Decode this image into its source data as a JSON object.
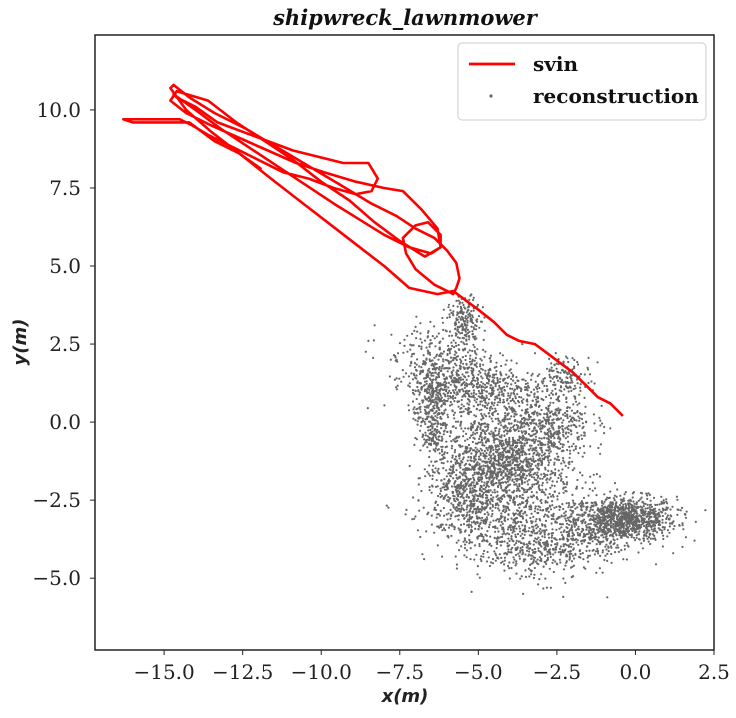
{
  "chart_data": {
    "type": "scatter",
    "title": "shipwreck_lawnmower",
    "xlabel": "x(m)",
    "ylabel": "y(m)",
    "xlim": [
      -17.2,
      2.5
    ],
    "ylim": [
      -7.3,
      12.4
    ],
    "xticks": [
      -15.0,
      -12.5,
      -10.0,
      -7.5,
      -5.0,
      -2.5,
      0.0,
      2.5
    ],
    "yticks": [
      -5.0,
      -2.5,
      0.0,
      2.5,
      5.0,
      7.5,
      10.0
    ],
    "xtick_labels": [
      "−15.0",
      "−12.5",
      "−10.0",
      "−7.5",
      "−5.0",
      "−2.5",
      "0.0",
      "2.5"
    ],
    "ytick_labels": [
      "−5.0",
      "−2.5",
      "0.0",
      "2.5",
      "5.0",
      "7.5",
      "10.0"
    ],
    "grid": false,
    "legend": {
      "position": "top-right",
      "entries": [
        {
          "label": "svin",
          "style": "line",
          "color": "#ff0000"
        },
        {
          "label": "reconstruction",
          "style": "point",
          "color": "#666666"
        }
      ]
    },
    "series": [
      {
        "name": "svin",
        "style": "line",
        "color": "#ff0000",
        "x": [
          -0.4,
          -0.8,
          -1.2,
          -1.6,
          -2.0,
          -2.4,
          -2.8,
          -3.2,
          -3.7,
          -4.1,
          -4.5,
          -5.0,
          -5.4,
          -5.8,
          -6.3,
          -7.2,
          -8.0,
          -8.9,
          -9.8,
          -10.7,
          -11.6,
          -12.6,
          -13.5,
          -14.3,
          -14.8,
          -14.7,
          -14.2,
          -13.4,
          -12.4,
          -11.4,
          -10.4,
          -9.4,
          -8.4,
          -7.6,
          -7.0,
          -6.4,
          -6.0,
          -5.7,
          -5.6,
          -5.7,
          -5.8,
          -6.4,
          -7.0,
          -7.3,
          -7.4,
          -7.0,
          -6.6,
          -6.2,
          -6.2,
          -6.7,
          -7.5,
          -8.3,
          -9.1,
          -10.0,
          -10.9,
          -11.8,
          -12.7,
          -13.6,
          -14.6,
          -14.8,
          -14.3,
          -13.5,
          -12.6,
          -11.7,
          -10.8,
          -9.9,
          -8.9,
          -8.0,
          -7.4,
          -6.8,
          -6.3,
          -6.2,
          -6.5,
          -7.2,
          -8.0,
          -8.8,
          -9.6,
          -10.5,
          -11.4,
          -12.3,
          -13.2,
          -14.0,
          -14.7,
          -14.6,
          -14.0,
          -13.3,
          -12.5,
          -11.7,
          -10.9,
          -10.1,
          -9.3,
          -8.5,
          -8.2,
          -8.4,
          -8.9,
          -9.6,
          -10.4,
          -11.2,
          -12.0,
          -12.8,
          -13.6,
          -14.1,
          -14.5,
          -15.4,
          -16.3,
          -16.0,
          -15.0,
          -14.2,
          -13.4,
          -12.6,
          -11.9
        ],
        "y": [
          0.2,
          0.6,
          0.8,
          1.2,
          1.6,
          1.9,
          2.2,
          2.5,
          2.6,
          2.8,
          3.2,
          3.6,
          3.9,
          4.2,
          4.1,
          4.3,
          5.0,
          5.7,
          6.4,
          7.1,
          7.8,
          8.6,
          9.3,
          10.0,
          10.7,
          10.8,
          10.4,
          9.9,
          9.4,
          8.8,
          8.2,
          7.6,
          7.0,
          6.6,
          6.2,
          5.9,
          5.5,
          5.1,
          4.6,
          4.3,
          4.1,
          4.4,
          4.9,
          5.4,
          5.9,
          6.3,
          6.4,
          6.0,
          5.6,
          5.3,
          5.8,
          6.4,
          7.1,
          7.7,
          8.4,
          9.0,
          9.6,
          10.3,
          10.6,
          10.3,
          9.9,
          9.5,
          9.1,
          8.7,
          8.3,
          8.0,
          7.7,
          7.5,
          7.4,
          6.8,
          6.2,
          5.6,
          5.4,
          5.6,
          6.0,
          6.5,
          7.0,
          7.6,
          8.2,
          8.8,
          9.4,
          10.0,
          10.5,
          10.4,
          10.1,
          9.6,
          9.3,
          9.0,
          8.7,
          8.5,
          8.3,
          8.3,
          7.8,
          7.4,
          7.3,
          7.5,
          7.8,
          8.0,
          8.4,
          8.8,
          9.2,
          9.5,
          9.7,
          9.7,
          9.7,
          9.6,
          9.6,
          9.6,
          9.0,
          8.6,
          8.1
        ]
      },
      {
        "name": "reconstruction",
        "style": "points",
        "color": "#666666",
        "clusters": [
          {
            "x": -0.3,
            "y": -3.1,
            "sx": 0.8,
            "sy": 0.35,
            "n": 900
          },
          {
            "x": -3.8,
            "y": -1.5,
            "sx": 0.9,
            "sy": 0.6,
            "n": 650
          },
          {
            "x": -5.2,
            "y": 1.2,
            "sx": 1.0,
            "sy": 0.5,
            "n": 500
          },
          {
            "x": -6.5,
            "y": 0.2,
            "sx": 0.25,
            "sy": 0.8,
            "n": 300
          },
          {
            "x": -2.8,
            "y": 0.0,
            "sx": 0.7,
            "sy": 0.6,
            "n": 450
          },
          {
            "x": -5.4,
            "y": -2.3,
            "sx": 0.6,
            "sy": 0.7,
            "n": 400
          },
          {
            "x": -3.2,
            "y": -4.1,
            "sx": 0.9,
            "sy": 0.5,
            "n": 350
          },
          {
            "x": -5.4,
            "y": 3.2,
            "sx": 0.25,
            "sy": 0.4,
            "n": 180
          },
          {
            "x": -2.2,
            "y": 1.5,
            "sx": 0.4,
            "sy": 0.3,
            "n": 120
          },
          {
            "x": -4.6,
            "y": -0.8,
            "sx": 0.9,
            "sy": 1.1,
            "n": 700
          },
          {
            "x": -4.0,
            "y": -3.2,
            "sx": 1.3,
            "sy": 0.6,
            "n": 400
          },
          {
            "x": -6.2,
            "y": 1.9,
            "sx": 0.7,
            "sy": 0.6,
            "n": 250
          },
          {
            "x": -1.3,
            "y": -3.4,
            "sx": 0.8,
            "sy": 0.5,
            "n": 300
          }
        ],
        "scatter_points": [
          [
            1.5,
            -3.3
          ],
          [
            0.9,
            -2.5
          ],
          [
            1.2,
            -4.2
          ],
          [
            -2.3,
            -5.6
          ],
          [
            -8.3,
            3.1
          ],
          [
            -8.5,
            2.6
          ],
          [
            -6.9,
            -1.8
          ],
          [
            -6.9,
            -2.5
          ],
          [
            -0.8,
            -0.2
          ],
          [
            -1.4,
            1.3
          ],
          [
            -3.6,
            2.5
          ],
          [
            -7.6,
            1.4
          ],
          [
            -7.6,
            2.0
          ],
          [
            -6.4,
            -2.8
          ],
          [
            -3.1,
            -5.2
          ],
          [
            -2.6,
            -4.8
          ],
          [
            -6.1,
            3.6
          ]
        ]
      }
    ]
  }
}
